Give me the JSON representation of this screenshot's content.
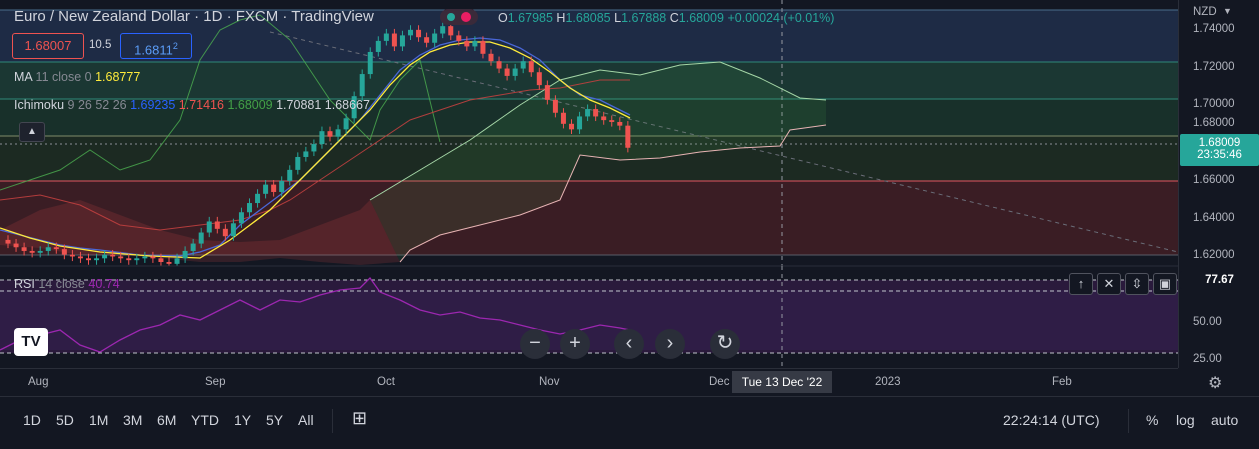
{
  "legend": {
    "title": "Euro / New Zealand Dollar · 1D · FXCM · TradingView",
    "o_label": "O",
    "o": "1.67985",
    "h_label": "H",
    "h": "1.68085",
    "l_label": "L",
    "l": "1.67888",
    "c_label": "C",
    "c": "1.68009",
    "change": "+0.00024 (+0.01%)"
  },
  "quote": {
    "sell": "1.68007",
    "spread": "10.5",
    "buy_main": "1.6811",
    "buy_small": "2"
  },
  "ma": {
    "name": "MA",
    "params": "11 close 0",
    "value": "1.68777"
  },
  "ichimoku": {
    "name": "Ichimoku",
    "params": "9 26 52 26",
    "v1": "1.69235",
    "v2": "1.71416",
    "v3": "1.68009",
    "v4": "1.70881",
    "v5": "1.68667"
  },
  "rsi": {
    "name": "RSI",
    "params": "14 close",
    "value": "40.74"
  },
  "price_axis": {
    "currency": "NZD",
    "labels": [
      "1.74000",
      "1.72000",
      "1.70000",
      "1.68000",
      "1.66000",
      "1.64000",
      "1.62000"
    ],
    "current_price": "1.68009",
    "countdown": "23:35:46",
    "rsi_labels": [
      "50.00",
      "25.00"
    ],
    "rsi_badge": "77.67"
  },
  "time_axis": {
    "labels": [
      "Aug",
      "Sep",
      "Oct",
      "Nov",
      "Dec",
      "2023",
      "Feb"
    ],
    "crosshair_date": "Tue 13 Dec '22"
  },
  "timeframes": [
    "1D",
    "5D",
    "1M",
    "3M",
    "6M",
    "YTD",
    "1Y",
    "5Y",
    "All"
  ],
  "clock": "22:24:14 (UTC)",
  "scale_options": {
    "percent": "%",
    "log": "log",
    "auto": "auto"
  },
  "logo_text": "TV",
  "colors": {
    "up": "#26a69a",
    "down": "#ef5350",
    "ma": "#ffeb3b",
    "rsi": "#9c27b0",
    "background": "#131722"
  },
  "chart_data": {
    "type": "candlestick",
    "symbol": "EURNZD",
    "interval": "1D",
    "y_range": [
      1.615,
      1.75
    ],
    "candles_approx_close": [
      1.628,
      1.626,
      1.624,
      1.623,
      1.624,
      1.626,
      1.625,
      1.622,
      1.621,
      1.62,
      1.619,
      1.62,
      1.622,
      1.621,
      1.62,
      1.619,
      1.62,
      1.621,
      1.62,
      1.618,
      1.617,
      1.62,
      1.624,
      1.628,
      1.634,
      1.64,
      1.636,
      1.632,
      1.639,
      1.645,
      1.65,
      1.655,
      1.66,
      1.656,
      1.662,
      1.668,
      1.675,
      1.678,
      1.682,
      1.689,
      1.686,
      1.69,
      1.696,
      1.708,
      1.72,
      1.732,
      1.738,
      1.742,
      1.735,
      1.741,
      1.744,
      1.74,
      1.737,
      1.742,
      1.746,
      1.741,
      1.738,
      1.735,
      1.738,
      1.731,
      1.727,
      1.723,
      1.719,
      1.723,
      1.727,
      1.721,
      1.714,
      1.706,
      1.699,
      1.693,
      1.69,
      1.697,
      1.701,
      1.697,
      1.695,
      1.694,
      1.692,
      1.68
    ]
  }
}
